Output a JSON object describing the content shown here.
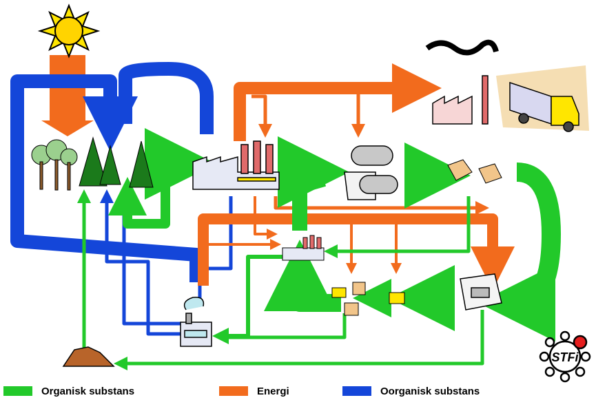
{
  "legend": [
    {
      "label": "Organisk substans",
      "color": "#22c92a"
    },
    {
      "label": "Energi",
      "color": "#f26b1d"
    },
    {
      "label": "Oorganisk substans",
      "color": "#1446d9"
    }
  ],
  "logo": "STFi"
}
